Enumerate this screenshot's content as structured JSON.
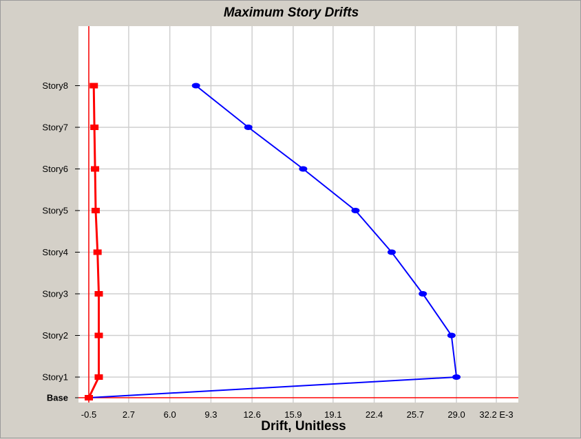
{
  "chart_data": {
    "type": "line",
    "title": "Maximum Story Drifts",
    "xlabel": "Drift, Unitless",
    "ylabel": "",
    "x_ticks": [
      "-0.5",
      "2.7",
      "6.0",
      "9.3",
      "12.6",
      "15.9",
      "19.1",
      "22.4",
      "25.7",
      "29.0",
      "32.2 E-3"
    ],
    "x_tick_values": [
      -0.5,
      2.7,
      6.0,
      9.3,
      12.6,
      15.9,
      19.1,
      22.4,
      25.7,
      29.0,
      32.2
    ],
    "xlim": [
      -0.5,
      32.2
    ],
    "x_unit_multiplier": "E-3",
    "categories": [
      "Base",
      "Story1",
      "Story2",
      "Story3",
      "Story4",
      "Story5",
      "Story6",
      "Story7",
      "Story8"
    ],
    "grid": true,
    "series": [
      {
        "color": "#0000ff",
        "marker": "circle",
        "values": [
          -0.5,
          29.0,
          28.6,
          26.3,
          23.8,
          20.9,
          16.7,
          12.3,
          8.1
        ]
      },
      {
        "color": "#ff0000",
        "marker": "square",
        "values": [
          -0.5,
          0.3,
          0.3,
          0.3,
          0.2,
          0.05,
          0.0,
          -0.05,
          -0.1
        ]
      }
    ],
    "reference_lines": {
      "vertical_x": -0.5,
      "horizontal_level": "Base",
      "color": "#ff0000"
    }
  }
}
